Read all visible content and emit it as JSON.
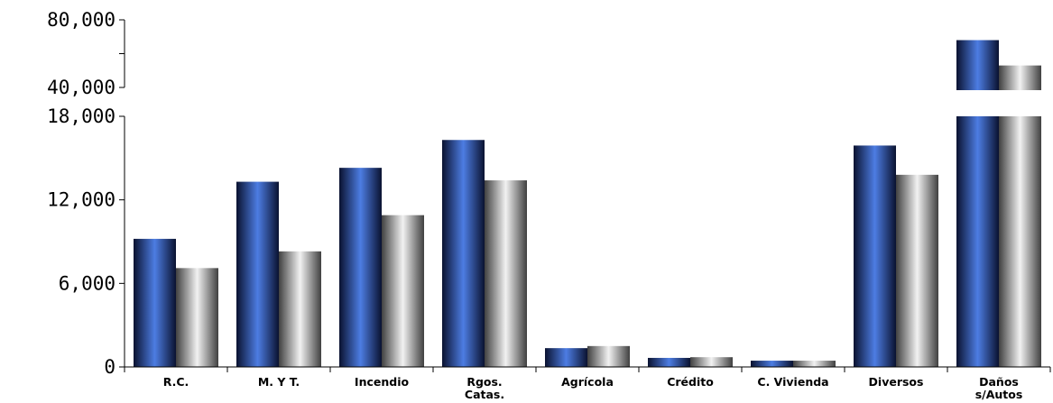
{
  "chart_data": {
    "type": "bar",
    "categories": [
      "R.C.",
      "M. Y T.",
      "Incendio",
      "Rgos.\nCatas.",
      "Agrícola",
      "Crédito",
      "C. Vivienda",
      "Diversos",
      "Daños\ns/Autos"
    ],
    "series": [
      {
        "values": [
          9200,
          13300,
          14300,
          16300,
          1350,
          650,
          450,
          15900,
          68000
        ],
        "color": "#3a5fcd"
      },
      {
        "values": [
          7100,
          8300,
          10900,
          13400,
          1500,
          700,
          450,
          13800,
          53000
        ],
        "color": "#a9a9a9"
      }
    ],
    "yticks_lower": [
      "0",
      "6,000",
      "12,000",
      "18,000"
    ],
    "yticks_upper": [
      "40,000",
      "80,000"
    ],
    "ylim_lower": [
      0,
      18000
    ],
    "ylim_upper": [
      40000,
      80000
    ],
    "axis_break": true,
    "grid": false,
    "legend": "none"
  }
}
